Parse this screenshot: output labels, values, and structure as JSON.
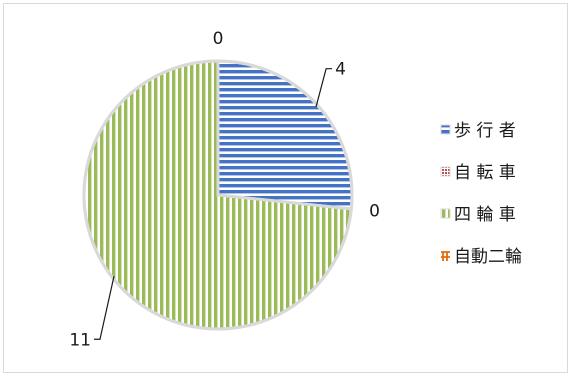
{
  "chart_data": {
    "type": "pie",
    "title": "",
    "legend_position": "right",
    "categories": [
      "歩 行 者",
      "自 転 車",
      "四 輪 車",
      "自動二輪"
    ],
    "values": [
      4,
      0,
      11,
      0
    ],
    "data_labels": [
      "4",
      "0",
      "11",
      "0"
    ],
    "series_colors": [
      "#4472c4",
      "#c0504d",
      "#9bbb59",
      "#e46c0a"
    ],
    "fill_patterns": [
      "horizontal-stripes",
      "dotted",
      "vertical-stripes",
      "diagonal"
    ],
    "slice_border_color": "#d9d9d9"
  }
}
